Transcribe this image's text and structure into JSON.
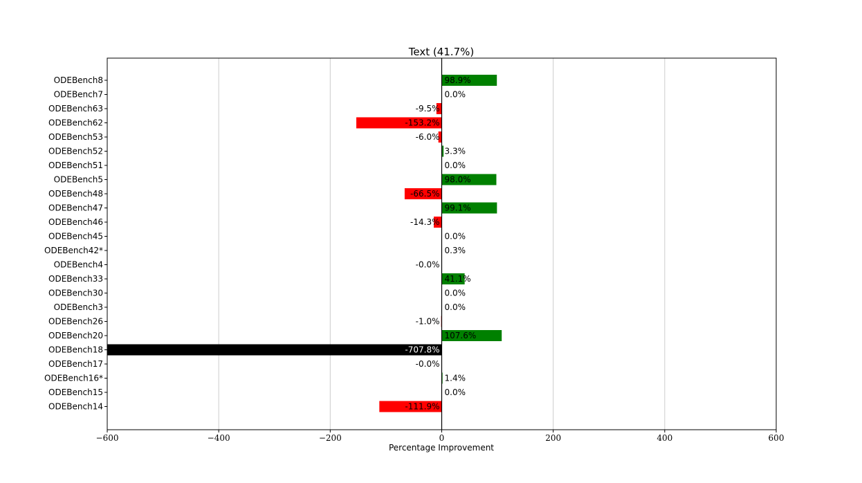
{
  "chart_data": {
    "type": "bar",
    "orientation": "horizontal",
    "title": "Text (41.7%)",
    "xlabel": "Percentage Improvement",
    "ylabel": "",
    "xlim": [
      -600,
      600
    ],
    "xticks": [
      -600,
      -400,
      -200,
      0,
      200,
      400,
      600
    ],
    "xtick_labels": [
      "−600",
      "−400",
      "−200",
      "0",
      "200",
      "400",
      "600"
    ],
    "grid": "vertical",
    "categories": [
      "ODEBench8",
      "ODEBench7",
      "ODEBench63",
      "ODEBench62",
      "ODEBench53",
      "ODEBench52",
      "ODEBench51",
      "ODEBench5",
      "ODEBench48",
      "ODEBench47",
      "ODEBench46",
      "ODEBench45",
      "ODEBench42*",
      "ODEBench4",
      "ODEBench33",
      "ODEBench30",
      "ODEBench3",
      "ODEBench26",
      "ODEBench20",
      "ODEBench18",
      "ODEBench17",
      "ODEBench16*",
      "ODEBench15",
      "ODEBench14"
    ],
    "values": [
      98.9,
      0.0,
      -9.5,
      -153.2,
      -6.0,
      3.3,
      0.0,
      98.0,
      -66.5,
      99.1,
      -14.3,
      0.0,
      0.3,
      -0.0,
      41.1,
      0.0,
      0.0,
      -1.0,
      107.6,
      -707.8,
      -0.0,
      1.4,
      0.0,
      -111.9
    ],
    "value_labels": [
      "98.9%",
      "0.0%",
      "-9.5%",
      "-153.2%",
      "-6.0%",
      "3.3%",
      "0.0%",
      "98.0%",
      "-66.5%",
      "99.1%",
      "-14.3%",
      "0.0%",
      "0.3%",
      "-0.0%",
      "41.1%",
      "0.0%",
      "0.0%",
      "-1.0%",
      "107.6%",
      "-707.8%",
      "-0.0%",
      "1.4%",
      "0.0%",
      "-111.9%"
    ],
    "colors": {
      "positive": "#008000",
      "negative": "#ff0000",
      "clipped": "#000000",
      "grid": "#cccccc",
      "zero_line": "#000000"
    }
  }
}
